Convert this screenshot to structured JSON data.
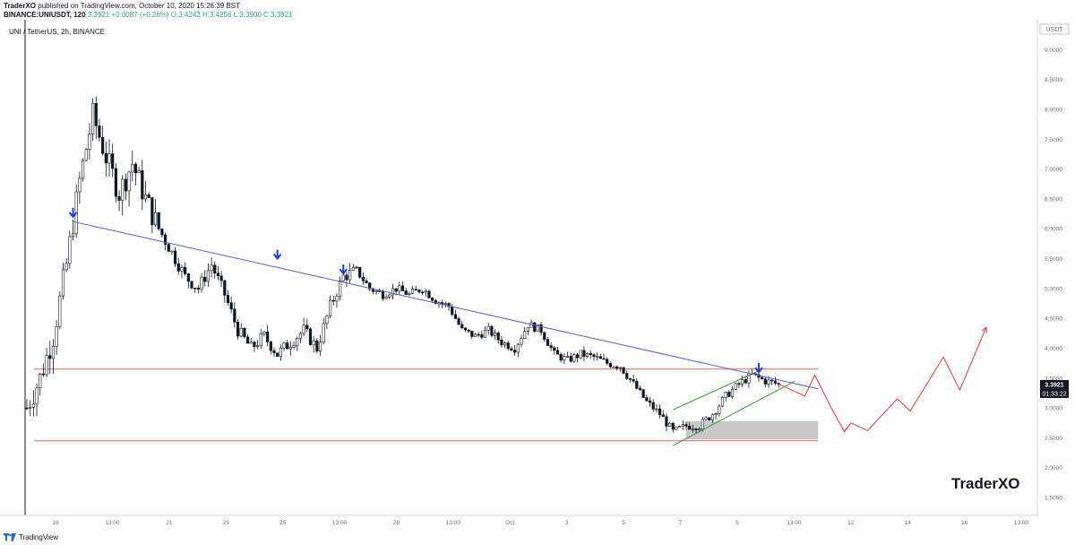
{
  "header": {
    "author": "TraderXO",
    "published_text": "published on TradingView.com, October 10, 2020 15:26:39 BST",
    "ticker": "BINANCE:UNIUSDT, 120",
    "price": "3.3921",
    "change": "+0.0087 (+0.26%)",
    "open": "O:3.4242",
    "high": "H:3.4256",
    "low": "L:3.3900",
    "close": "C:3.3921"
  },
  "symbol_label": "UNI / TetherUS, 2h, BINANCE",
  "price_axis": {
    "unit": "USDT",
    "last_price": "3.3921",
    "countdown": "01:33:22"
  },
  "brand": "TraderXO",
  "footer": {
    "label": "TradingView"
  },
  "colors": {
    "up": "#26a69a",
    "candle": "#131722",
    "trendline": "#5b5bd6",
    "support": "#e06666",
    "channel": "#3a9a3a",
    "projection": "#e53935",
    "marker": "#1f3fcf",
    "zone": "#c8c8c8"
  },
  "chart_data": {
    "type": "candlestick",
    "ylim": [
      1.2,
      9.5
    ],
    "y_ticks": [
      1.5,
      2.0,
      2.5,
      3.0,
      3.5,
      4.0,
      4.5,
      5.0,
      5.5,
      6.0,
      6.5,
      7.0,
      7.5,
      8.0,
      8.5,
      9.0
    ],
    "x_ticks": [
      "18",
      "13:00",
      "21",
      "23",
      "25",
      "13:00",
      "28",
      "13:00",
      "Oct",
      "3",
      "5",
      "7",
      "9",
      "13:00",
      "12",
      "14",
      "16",
      "13:00"
    ],
    "anchors": [
      [
        0,
        3.0
      ],
      [
        4,
        3.5
      ],
      [
        8,
        4.2
      ],
      [
        12,
        5.4
      ],
      [
        16,
        6.8
      ],
      [
        20,
        7.9
      ],
      [
        24,
        7.2
      ],
      [
        28,
        6.6
      ],
      [
        32,
        7.1
      ],
      [
        36,
        6.5
      ],
      [
        40,
        6.0
      ],
      [
        44,
        5.6
      ],
      [
        48,
        5.2
      ],
      [
        52,
        5.0
      ],
      [
        56,
        5.4
      ],
      [
        60,
        4.9
      ],
      [
        64,
        4.3
      ],
      [
        68,
        4.0
      ],
      [
        72,
        4.2
      ],
      [
        76,
        3.9
      ],
      [
        80,
        4.1
      ],
      [
        84,
        4.3
      ],
      [
        88,
        4.0
      ],
      [
        92,
        4.7
      ],
      [
        96,
        5.2
      ],
      [
        100,
        5.3
      ],
      [
        104,
        5.0
      ],
      [
        108,
        4.9
      ],
      [
        112,
        5.0
      ],
      [
        116,
        4.9
      ],
      [
        120,
        5.0
      ],
      [
        124,
        4.8
      ],
      [
        128,
        4.7
      ],
      [
        132,
        4.3
      ],
      [
        136,
        4.2
      ],
      [
        140,
        4.3
      ],
      [
        144,
        4.1
      ],
      [
        148,
        4.0
      ],
      [
        152,
        4.4
      ],
      [
        156,
        4.3
      ],
      [
        160,
        3.9
      ],
      [
        164,
        3.8
      ],
      [
        168,
        3.9
      ],
      [
        172,
        3.85
      ],
      [
        176,
        3.75
      ],
      [
        180,
        3.7
      ],
      [
        184,
        3.4
      ],
      [
        188,
        3.1
      ],
      [
        192,
        2.9
      ],
      [
        196,
        2.6
      ],
      [
        200,
        2.7
      ],
      [
        204,
        2.7
      ],
      [
        208,
        2.9
      ],
      [
        212,
        3.2
      ],
      [
        216,
        3.4
      ],
      [
        220,
        3.55
      ],
      [
        224,
        3.45
      ],
      [
        228,
        3.4
      ]
    ],
    "trendline": [
      [
        14,
        6.12
      ],
      [
        240,
        3.32
      ]
    ],
    "support_lines": [
      {
        "y": 3.65,
        "x0": 0,
        "x1": 240
      },
      {
        "y": 2.45,
        "x0": 0,
        "x1": 240
      }
    ],
    "demand_zone": {
      "x0": 200,
      "x1": 240,
      "y0": 2.47,
      "y1": 2.78
    },
    "channel_lines": [
      [
        [
          196,
          2.97
        ],
        [
          222,
          3.62
        ]
      ],
      [
        [
          196,
          2.37
        ],
        [
          233,
          3.45
        ]
      ]
    ],
    "markers": [
      {
        "x": 14,
        "y": 6.2
      },
      {
        "x": 76,
        "y": 5.5
      },
      {
        "x": 96,
        "y": 5.25
      },
      {
        "x": 222,
        "y": 3.6
      }
    ],
    "projection": [
      [
        228,
        3.4
      ],
      [
        236,
        3.2
      ],
      [
        239,
        3.55
      ],
      [
        244,
        3.0
      ],
      [
        248,
        2.6
      ],
      [
        250,
        2.75
      ],
      [
        255,
        2.62
      ],
      [
        264,
        3.15
      ],
      [
        268,
        2.95
      ],
      [
        278,
        3.85
      ],
      [
        283,
        3.3
      ],
      [
        291,
        4.35
      ]
    ]
  }
}
